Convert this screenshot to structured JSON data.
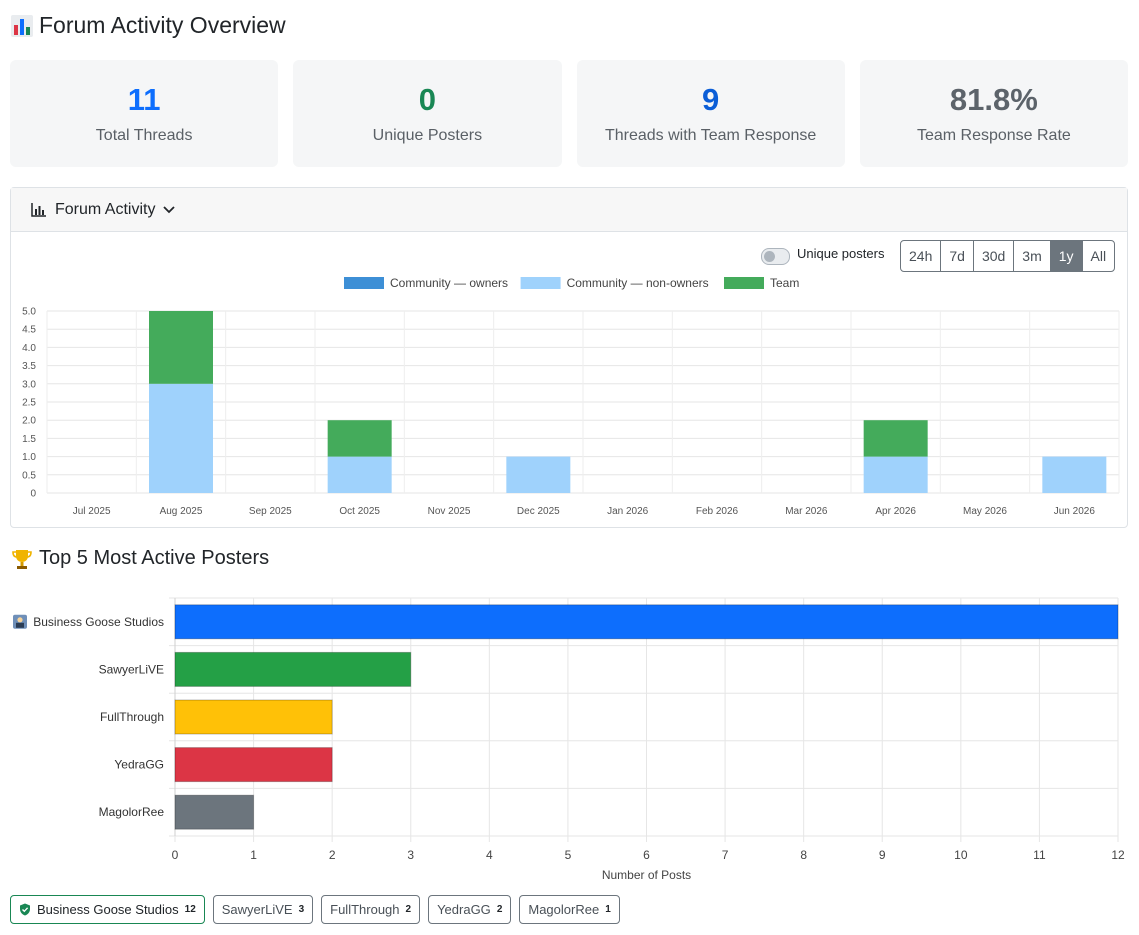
{
  "page": {
    "title": "Forum Activity Overview",
    "title_icon": "bar-chart-icon"
  },
  "stats": [
    {
      "value": "11",
      "label": "Total Threads",
      "color": "#0d6efd"
    },
    {
      "value": "0",
      "label": "Unique Posters",
      "color": "#198754"
    },
    {
      "value": "9",
      "label": "Threads with Team Response",
      "color": "#0b5ed7"
    },
    {
      "value": "81.8%",
      "label": "Team Response Rate",
      "color": "#5c636a"
    }
  ],
  "activity": {
    "header": "Forum Activity",
    "toggle_label": "Unique posters",
    "toggle_on": false,
    "ranges": [
      "24h",
      "7d",
      "30d",
      "3m",
      "1y",
      "All"
    ],
    "active_range": "1y"
  },
  "colors": {
    "owners": "#3d8fd6",
    "non_owners": "#9fd2fc",
    "team": "#44ab5b"
  },
  "top_posters": {
    "title": "Top 5 Most Active Posters",
    "chips": [
      {
        "name": "Business Goose Studios",
        "count": "12",
        "team": true
      },
      {
        "name": "SawyerLiVE",
        "count": "3",
        "team": false
      },
      {
        "name": "FullThrough",
        "count": "2",
        "team": false
      },
      {
        "name": "YedraGG",
        "count": "2",
        "team": false
      },
      {
        "name": "MagolorRee",
        "count": "1",
        "team": false
      }
    ]
  },
  "chart_data": [
    {
      "type": "bar",
      "stacked": true,
      "categories": [
        "Jul 2025",
        "Aug 2025",
        "Sep 2025",
        "Oct 2025",
        "Nov 2025",
        "Dec 2025",
        "Jan 2026",
        "Feb 2026",
        "Mar 2026",
        "Apr 2026",
        "May 2026",
        "Jun 2026"
      ],
      "series": [
        {
          "name": "Community — owners",
          "color": "#3d8fd6",
          "values": [
            0,
            0,
            0,
            0,
            0,
            0,
            0,
            0,
            0,
            0,
            0,
            0
          ]
        },
        {
          "name": "Community — non-owners",
          "color": "#9fd2fc",
          "values": [
            0,
            3,
            0,
            1,
            0,
            1,
            0,
            0,
            0,
            1,
            0,
            1
          ]
        },
        {
          "name": "Team",
          "color": "#44ab5b",
          "values": [
            0,
            2,
            0,
            1,
            0,
            0,
            0,
            0,
            0,
            1,
            0,
            0
          ]
        }
      ],
      "ylim": [
        0,
        5
      ],
      "yticks": [
        "5.0",
        "4.5",
        "4.0",
        "3.5",
        "3.0",
        "2.5",
        "2.0",
        "1.5",
        "1.0",
        "0.5",
        "0"
      ],
      "legend": "top",
      "grid": true
    },
    {
      "type": "bar",
      "orientation": "horizontal",
      "categories": [
        "Business Goose Studios",
        "SawyerLiVE",
        "FullThrough",
        "YedraGG",
        "MagolorRee"
      ],
      "values": [
        12,
        3,
        2,
        2,
        1
      ],
      "colors": [
        "#0d6efd",
        "#24a046",
        "#ffc107",
        "#dc3545",
        "#6c757d"
      ],
      "first_icon": "team-icon",
      "xlabel": "Number of Posts",
      "xlim": [
        0,
        12
      ],
      "xticks": [
        "0",
        "1",
        "2",
        "3",
        "4",
        "5",
        "6",
        "7",
        "8",
        "9",
        "10",
        "11",
        "12"
      ],
      "grid": true
    }
  ]
}
